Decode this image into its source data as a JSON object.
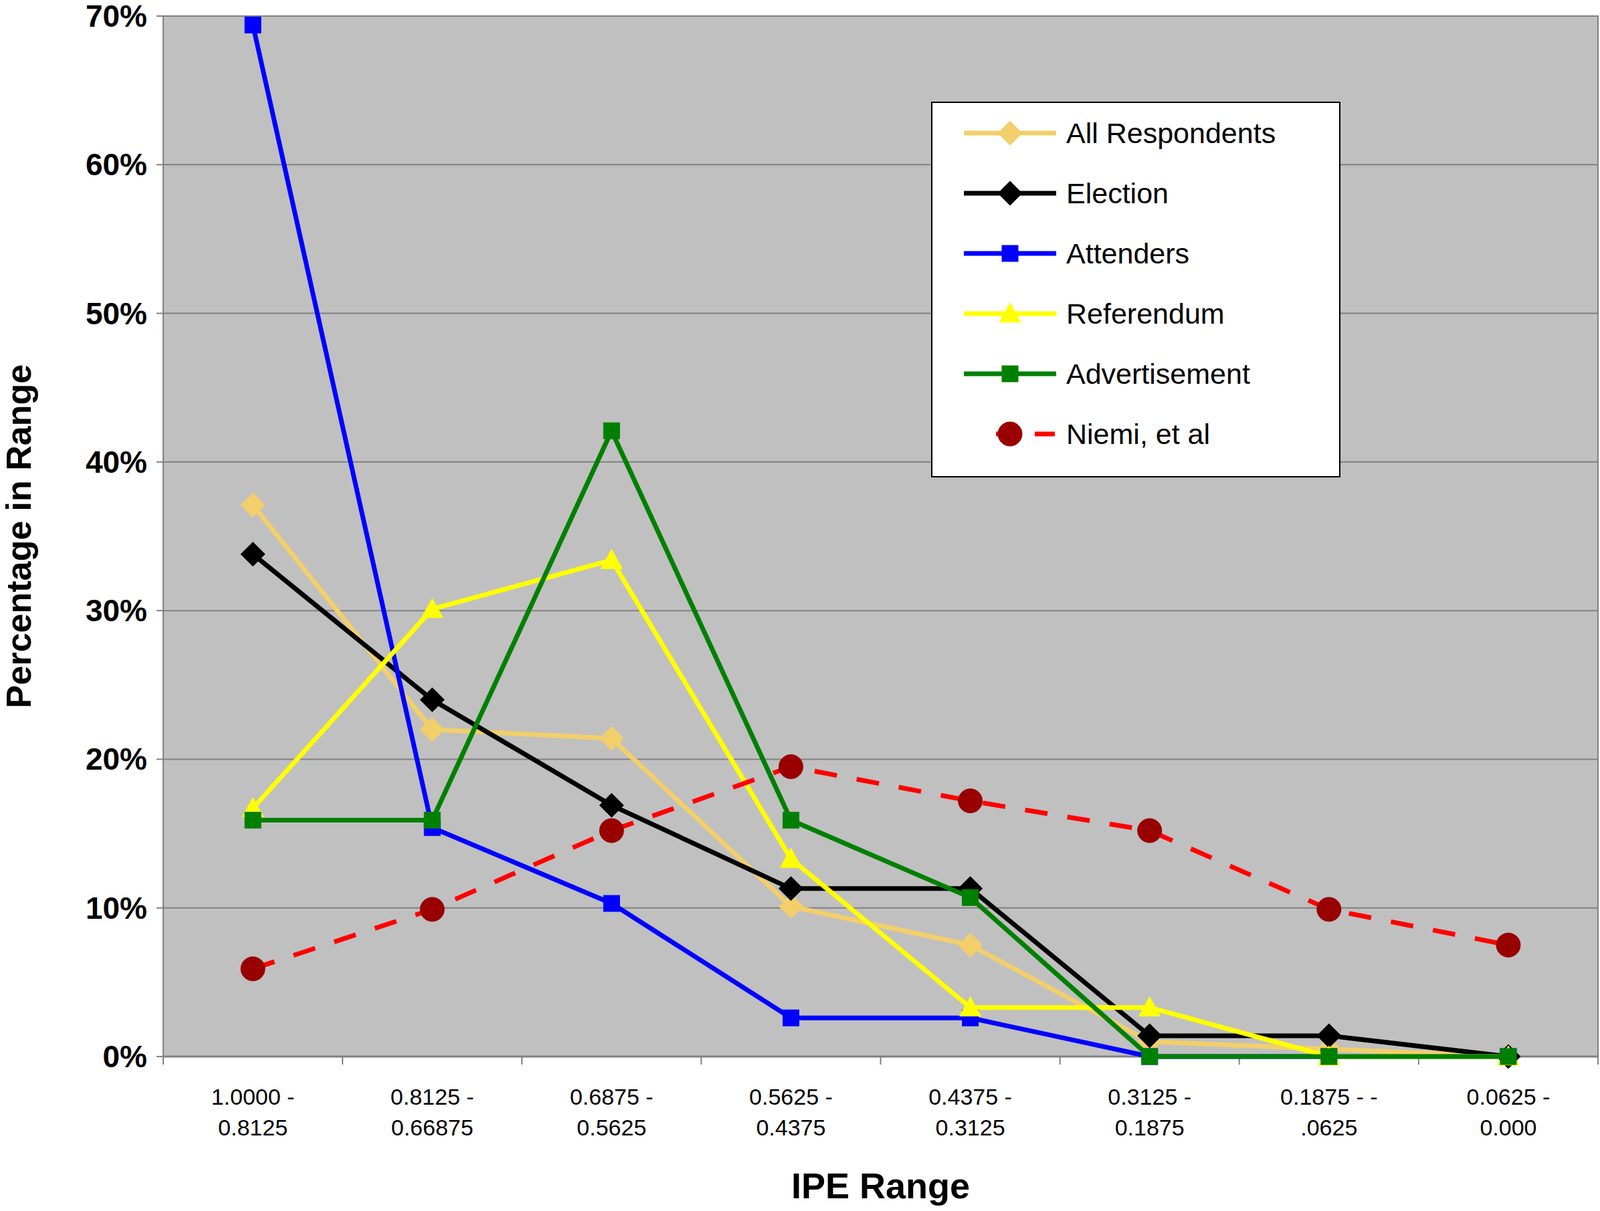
{
  "chart_data": {
    "type": "line",
    "x_label": "IPE Range",
    "y_label": "Percentage in Range",
    "categories": [
      "1.0000 - 0.8125",
      "0.8125 - 0.66875",
      "0.6875 - 0.5625",
      "0.5625 - 0.4375",
      "0.4375 - 0.3125",
      "0.3125 - 0.1875",
      "0.1875 - - .0625",
      "0.0625 - 0.000"
    ],
    "series": [
      {
        "name": "All Respondents",
        "color": "#f2cf6a",
        "marker": "diamond",
        "line_style": "solid",
        "values": [
          37.1,
          22.0,
          21.4,
          10.1,
          7.5,
          1.0,
          0.5,
          0
        ]
      },
      {
        "name": "Election",
        "color": "#000000",
        "marker": "diamond",
        "line_style": "solid",
        "values": [
          33.8,
          24.0,
          16.9,
          11.3,
          11.3,
          1.4,
          1.4,
          0
        ]
      },
      {
        "name": "Attenders",
        "color": "#0000ff",
        "marker": "square",
        "line_style": "solid",
        "values": [
          69.4,
          15.4,
          10.3,
          2.6,
          2.6,
          0,
          0,
          0
        ]
      },
      {
        "name": "Referendum",
        "color": "#ffff00",
        "marker": "triangle",
        "line_style": "solid",
        "values": [
          16.7,
          30.1,
          33.4,
          13.3,
          3.3,
          3.3,
          0,
          0
        ]
      },
      {
        "name": "Advertisement",
        "color": "#008000",
        "marker": "square",
        "line_style": "solid",
        "values": [
          15.9,
          15.9,
          42.1,
          15.9,
          10.7,
          0,
          0,
          0
        ]
      },
      {
        "name": "Niemi, et al",
        "color": "#ff0000",
        "marker": "circle",
        "line_style": "dashed",
        "values": [
          5.9,
          9.9,
          15.2,
          19.5,
          17.2,
          15.2,
          9.9,
          7.5
        ]
      }
    ],
    "ylim": [
      0,
      70
    ],
    "yticks": [
      {
        "value": 0,
        "label": "0%"
      },
      {
        "value": 10,
        "label": "10%"
      },
      {
        "value": 20,
        "label": "20%"
      },
      {
        "value": 30,
        "label": "30%"
      },
      {
        "value": 40,
        "label": "40%"
      },
      {
        "value": 50,
        "label": "50%"
      },
      {
        "value": 60,
        "label": "60%"
      },
      {
        "value": 70,
        "label": "70%"
      }
    ],
    "grid": true,
    "legend": "top-right"
  }
}
